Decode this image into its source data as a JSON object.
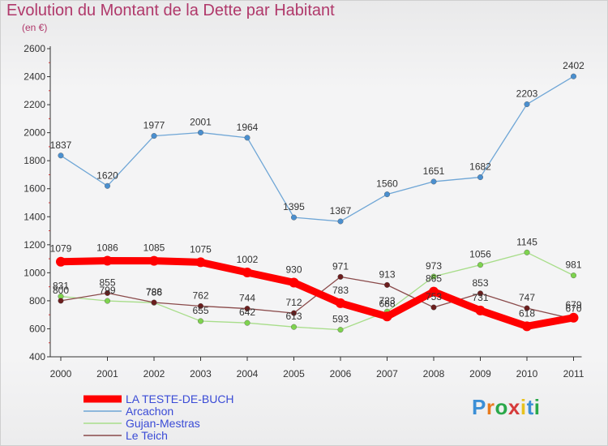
{
  "title": "Evolution du Montant de la Dette par Habitant",
  "subtitle": "(en €)",
  "logo": {
    "text": "Proxiti",
    "letter_colors": [
      "#3b8fd6",
      "#e87b1e",
      "#2aa84a",
      "#d63b3b",
      "#e8c21e",
      "#3b8fd6",
      "#2aa84a"
    ]
  },
  "chart_data": {
    "type": "line",
    "categories": [
      "2000",
      "2001",
      "2002",
      "2003",
      "2004",
      "2005",
      "2006",
      "2007",
      "2008",
      "2009",
      "2010",
      "2011"
    ],
    "ylim": [
      400,
      2600
    ],
    "yticks": [
      400,
      600,
      800,
      1000,
      1200,
      1400,
      1600,
      1800,
      2000,
      2200,
      2400,
      2600
    ],
    "grid": false,
    "legend_position": "bottom-left",
    "series": [
      {
        "name": "Arcachon",
        "color": "#4a8fcf",
        "line_color": "#6fa6d6",
        "values": [
          1837,
          1620,
          1977,
          2001,
          1964,
          1395,
          1367,
          1560,
          1651,
          1682,
          2203,
          2402
        ]
      },
      {
        "name": "Gujan-Mestras",
        "color": "#7ed34e",
        "line_color": "#a8dd8a",
        "values": [
          831,
          799,
          786,
          655,
          642,
          613,
          593,
          723,
          973,
          1056,
          1145,
          981
        ]
      },
      {
        "name": "Le Teich",
        "color": "#6b1d1d",
        "line_color": "#8a4a4a",
        "values": [
          800,
          855,
          788,
          762,
          744,
          712,
          971,
          913,
          753,
          853,
          747,
          670
        ]
      },
      {
        "name": "LA TESTE-DE-BUCH",
        "color": "#ff0000",
        "line_color": "#ff0000",
        "values": [
          1079,
          1086,
          1085,
          1075,
          1002,
          930,
          783,
          688,
          865,
          731,
          618,
          679
        ]
      }
    ],
    "data_labels": [
      {
        "series": "Arcachon",
        "labels": [
          "1837",
          "1620",
          "1977",
          "2001",
          "1964",
          "1395",
          "1367",
          "1560",
          "1651",
          "1682",
          "2203",
          "2402"
        ]
      },
      {
        "series": "Gujan-Mestras",
        "labels": [
          "831",
          "799",
          "786",
          "655",
          "642",
          "613",
          "593",
          "723",
          "973",
          "1056",
          "1145",
          "981"
        ]
      },
      {
        "series": "Le Teich",
        "labels": [
          "800",
          "855",
          "788",
          "762",
          "744",
          "712",
          "971",
          "913",
          "753",
          "853",
          "747",
          "670"
        ]
      },
      {
        "series": "LA TESTE-DE-BUCH",
        "labels": [
          "1079",
          "1086",
          "1085",
          "1075",
          "1002",
          "930",
          "783",
          "688",
          "865",
          "731",
          "618",
          "679"
        ]
      }
    ],
    "legend_order": [
      "LA TESTE-DE-BUCH",
      "Arcachon",
      "Gujan-Mestras",
      "Le Teich"
    ]
  }
}
